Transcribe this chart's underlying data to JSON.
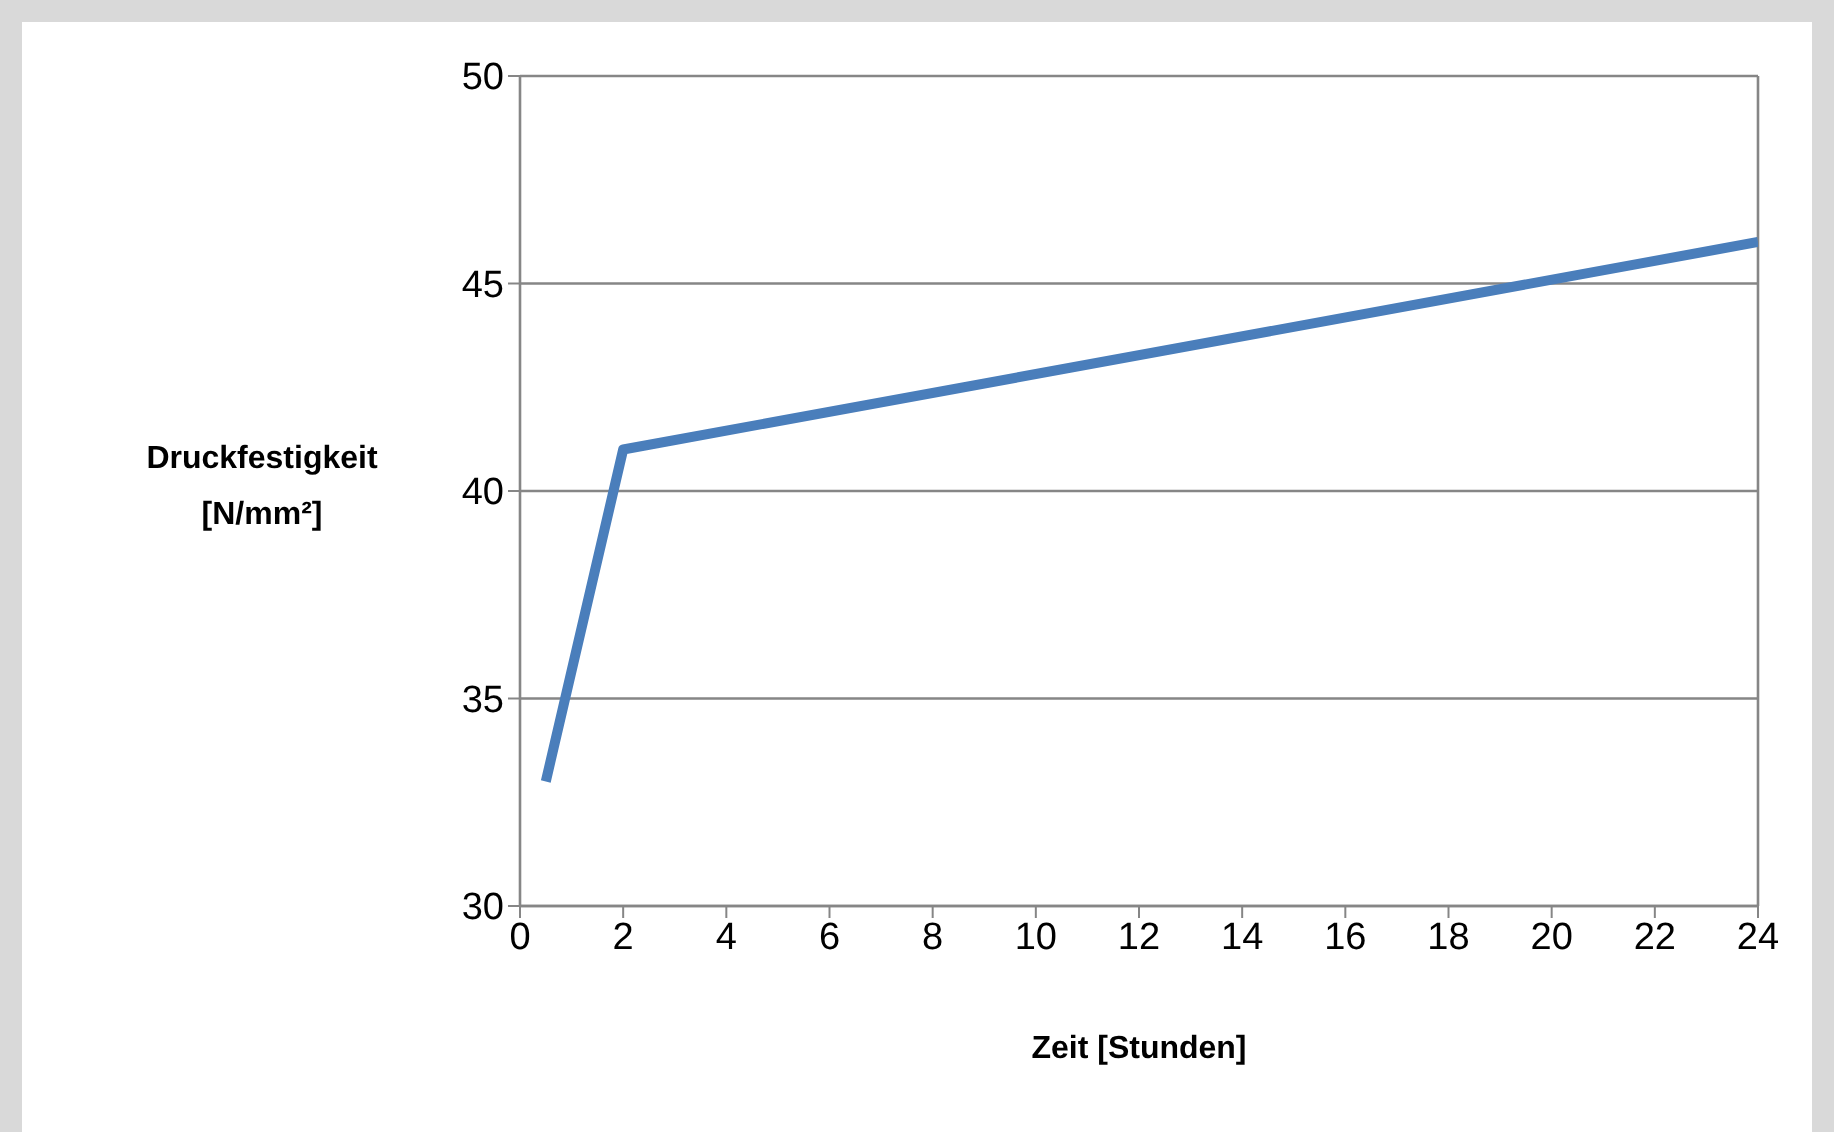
{
  "chart_data": {
    "type": "line",
    "xlabel": "Zeit [Stunden]",
    "ylabel": "Druckfestigkeit [N/mm²]",
    "x": [
      0.5,
      2,
      24
    ],
    "series": [
      {
        "color": "#4a7ebb",
        "values": [
          33,
          41,
          46
        ]
      }
    ],
    "xlim": [
      0,
      24
    ],
    "xticks": [
      0,
      2,
      4,
      6,
      8,
      10,
      12,
      14,
      16,
      18,
      20,
      22,
      24
    ],
    "ylim": [
      30,
      50
    ],
    "yticks": [
      30,
      35,
      40,
      45,
      50
    ],
    "grid": "y",
    "marker": "none",
    "line_style": "solid"
  }
}
